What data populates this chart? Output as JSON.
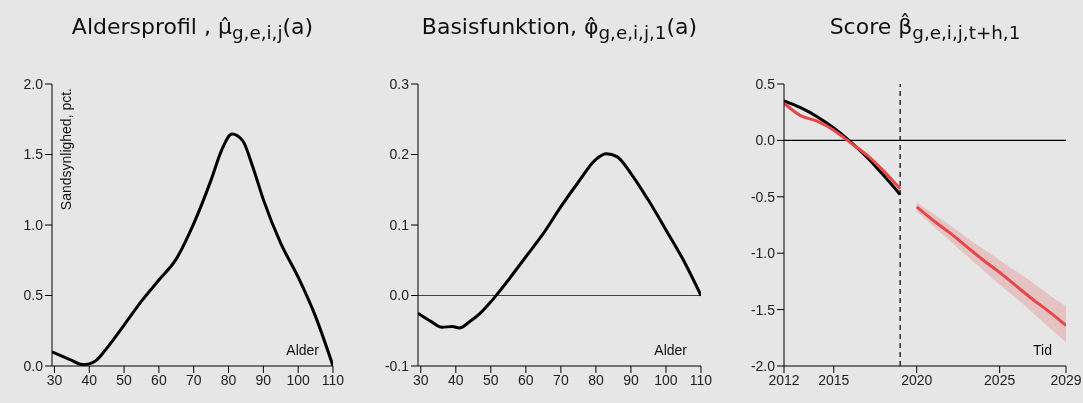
{
  "chart_data": [
    {
      "type": "line",
      "title": "Aldersprofil , μ̂$_{g,e,i,j}$(a)",
      "xlabel": "Alder",
      "ylabel": "Sandsynlighed, pct.",
      "xlim": [
        29.3,
        110
      ],
      "xticks": [
        30,
        40,
        50,
        60,
        70,
        80,
        90,
        100,
        110
      ],
      "ylim": [
        0,
        2
      ],
      "yticks": [
        {
          "value": 0,
          "label": "0.0"
        },
        {
          "value": 0.5,
          "label": "0.5"
        },
        {
          "value": 1,
          "label": "1.0"
        },
        {
          "value": 1.5,
          "label": "1.5"
        },
        {
          "value": 2,
          "label": "2.0"
        }
      ],
      "x": [
        29.3,
        35,
        38,
        40,
        42,
        45,
        50,
        55,
        60,
        65,
        70,
        75,
        78,
        81,
        84,
        87,
        90,
        95,
        100,
        105,
        110
      ],
      "series": [
        {
          "color": "#000000",
          "values": [
            0.1,
            0.04,
            0.01,
            0.015,
            0.04,
            0.125,
            0.29,
            0.46,
            0.61,
            0.76,
            1.01,
            1.32,
            1.53,
            1.645,
            1.6,
            1.41,
            1.18,
            0.87,
            0.63,
            0.35,
            0.0
          ]
        }
      ]
    },
    {
      "type": "line",
      "title": "Basisfunktion, φ̂$_{g,e,i,j,1}$(a)",
      "xlabel": "Alder",
      "xlim": [
        29.2,
        110
      ],
      "xticks": [
        30,
        40,
        50,
        60,
        70,
        80,
        90,
        100,
        110
      ],
      "ylim": [
        -0.1,
        0.3
      ],
      "yticks": [
        -0.1,
        {
          "value": 0,
          "label": "0.0"
        },
        0.1,
        0.2,
        0.3
      ],
      "ref_lines": [
        {
          "axis": "y",
          "value": 0,
          "color": "#444444",
          "line_style": "solid"
        }
      ],
      "x": [
        29.2,
        33,
        36,
        39,
        41,
        44,
        47,
        50,
        52,
        55,
        60,
        65,
        70,
        75,
        80,
        83,
        86,
        90,
        95,
        100,
        105,
        110
      ],
      "series": [
        {
          "color": "#000000",
          "values": [
            -0.025,
            -0.037,
            -0.045,
            -0.044,
            -0.046,
            -0.037,
            -0.025,
            -0.009,
            0.003,
            0.022,
            0.055,
            0.088,
            0.126,
            0.161,
            0.193,
            0.201,
            0.197,
            0.173,
            0.135,
            0.093,
            0.05,
            0.0
          ]
        }
      ]
    },
    {
      "type": "line",
      "title": "Score β̂$_{g,e,i,j,t+h,1}$",
      "xlabel": "Tid",
      "xlim": [
        2012,
        2029
      ],
      "xticks": [
        2012,
        2015,
        2020,
        2025,
        2029
      ],
      "ylim": [
        -2,
        0.5
      ],
      "yticks": [
        {
          "value": -2,
          "label": "-2.0"
        },
        -1.5,
        {
          "value": -1,
          "label": "-1.0"
        },
        -0.5,
        {
          "value": 0,
          "label": "0.0"
        },
        0.5
      ],
      "ref_lines": [
        {
          "axis": "y",
          "value": 0,
          "color": "#000000",
          "line_style": "solid"
        },
        {
          "axis": "x",
          "value": 2019,
          "color": "#000000",
          "line_style": "dashed"
        }
      ],
      "series": [
        {
          "color": "#000000",
          "x": [
            2012,
            2013,
            2014,
            2015,
            2016,
            2017,
            2018,
            2019
          ],
          "values": [
            0.35,
            0.29,
            0.21,
            0.11,
            -0.01,
            -0.15,
            -0.31,
            -0.48
          ]
        },
        {
          "color": "#e8474a",
          "x": [
            2012,
            2013,
            2014,
            2015,
            2016,
            2017,
            2018,
            2019
          ],
          "values": [
            0.33,
            0.22,
            0.17,
            0.09,
            -0.02,
            -0.13,
            -0.27,
            -0.43
          ]
        },
        {
          "color": "#e8474a",
          "x": [
            2020,
            2021,
            2022,
            2023,
            2024,
            2025,
            2026,
            2027,
            2028,
            2029
          ],
          "values": [
            -0.59,
            -0.71,
            -0.82,
            -0.94,
            -1.06,
            -1.17,
            -1.29,
            -1.41,
            -1.52,
            -1.64
          ],
          "lower": [
            -0.63,
            -0.76,
            -0.89,
            -1.02,
            -1.15,
            -1.28,
            -1.4,
            -1.53,
            -1.66,
            -1.79
          ],
          "upper": [
            -0.55,
            -0.65,
            -0.75,
            -0.86,
            -0.96,
            -1.06,
            -1.16,
            -1.26,
            -1.37,
            -1.47
          ]
        }
      ]
    }
  ]
}
